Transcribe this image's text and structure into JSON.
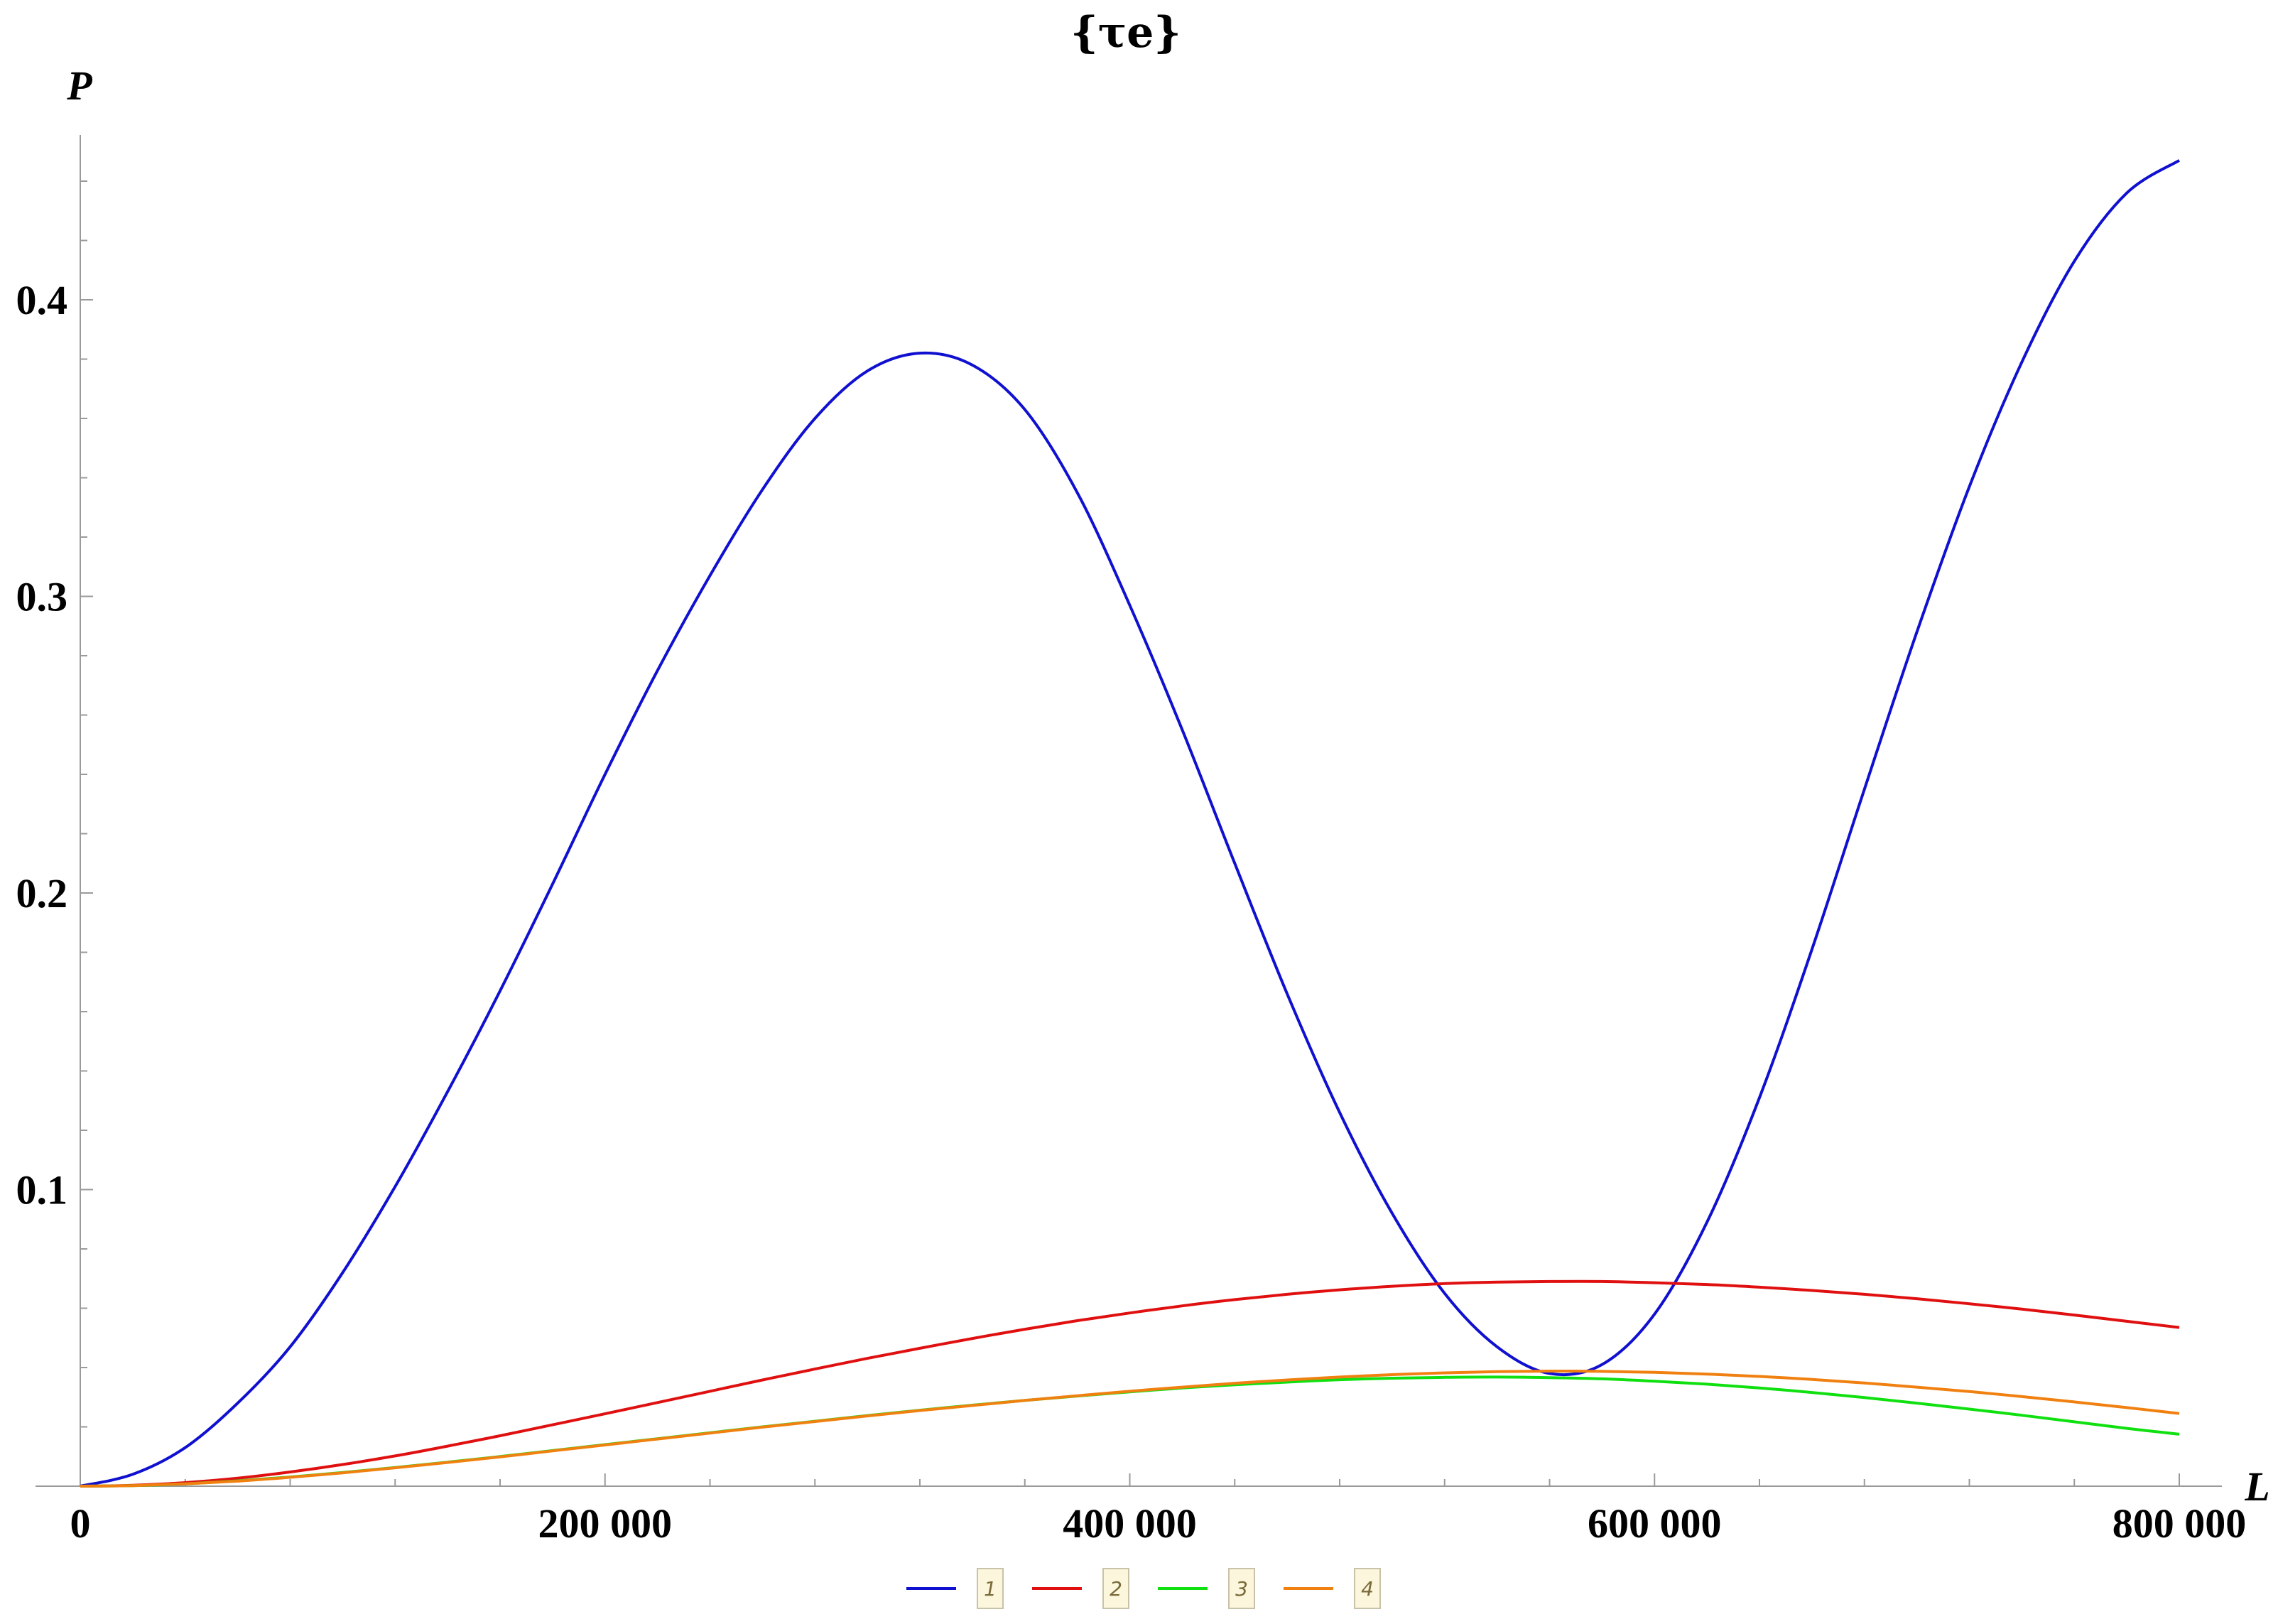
{
  "chart_data": {
    "type": "line",
    "title": "{τe}",
    "xlabel": "L",
    "ylabel": "P",
    "xlim": [
      0,
      800000
    ],
    "ylim": [
      0,
      0.45
    ],
    "x_ticks": [
      0,
      200000,
      400000,
      600000,
      800000
    ],
    "x_tick_labels": [
      "0",
      "200 000",
      "400 000",
      "600 000",
      "800 000"
    ],
    "y_ticks": [
      0.1,
      0.2,
      0.3,
      0.4
    ],
    "y_tick_labels": [
      "0.1",
      "0.2",
      "0.3",
      "0.4"
    ],
    "grid": false,
    "legend_position": "bottom-center",
    "x": [
      0,
      20000,
      40000,
      60000,
      80000,
      100000,
      120000,
      140000,
      160000,
      180000,
      200000,
      220000,
      240000,
      260000,
      280000,
      300000,
      320000,
      340000,
      360000,
      380000,
      400000,
      420000,
      440000,
      460000,
      480000,
      500000,
      520000,
      540000,
      560000,
      580000,
      600000,
      620000,
      640000,
      660000,
      680000,
      700000,
      720000,
      740000,
      760000,
      780000,
      800000
    ],
    "series": [
      {
        "name": "1",
        "color": "#1010d0",
        "values": [
          0,
          0.004,
          0.013,
          0.028,
          0.047,
          0.072,
          0.101,
          0.133,
          0.167,
          0.203,
          0.24,
          0.275,
          0.307,
          0.336,
          0.36,
          0.376,
          0.382,
          0.378,
          0.363,
          0.335,
          0.297,
          0.255,
          0.21,
          0.166,
          0.126,
          0.092,
          0.065,
          0.047,
          0.038,
          0.041,
          0.058,
          0.089,
          0.131,
          0.181,
          0.235,
          0.288,
          0.337,
          0.379,
          0.413,
          0.436,
          0.447
        ]
      },
      {
        "name": "2",
        "color": "#e01010",
        "values": [
          0,
          0.0003,
          0.0012,
          0.0027,
          0.0048,
          0.0073,
          0.0102,
          0.0135,
          0.017,
          0.0207,
          0.0244,
          0.0282,
          0.032,
          0.0358,
          0.0395,
          0.0431,
          0.0465,
          0.0498,
          0.0529,
          0.0558,
          0.0584,
          0.0608,
          0.0629,
          0.0647,
          0.0662,
          0.0674,
          0.0683,
          0.0688,
          0.069,
          0.069,
          0.0686,
          0.068,
          0.0671,
          0.066,
          0.0647,
          0.0632,
          0.0615,
          0.0597,
          0.0577,
          0.0556,
          0.0535
        ]
      },
      {
        "name": "3",
        "color": "#10e010",
        "values": [
          0,
          0.0002,
          0.0008,
          0.0018,
          0.0031,
          0.0046,
          0.0063,
          0.0081,
          0.01,
          0.012,
          0.014,
          0.016,
          0.018,
          0.02,
          0.0219,
          0.0238,
          0.0256,
          0.0273,
          0.0289,
          0.0304,
          0.0318,
          0.0331,
          0.0342,
          0.0351,
          0.0359,
          0.0364,
          0.0367,
          0.0368,
          0.0366,
          0.0362,
          0.0354,
          0.0344,
          0.0331,
          0.0316,
          0.0299,
          0.028,
          0.026,
          0.0239,
          0.0217,
          0.0195,
          0.0175
        ]
      },
      {
        "name": "4",
        "color": "#f08010",
        "values": [
          0,
          0.0002,
          0.0008,
          0.0017,
          0.003,
          0.0045,
          0.0062,
          0.008,
          0.0099,
          0.0119,
          0.0139,
          0.0159,
          0.0179,
          0.0199,
          0.0218,
          0.0237,
          0.0255,
          0.0272,
          0.0289,
          0.0305,
          0.032,
          0.0334,
          0.0347,
          0.0358,
          0.0368,
          0.0376,
          0.0382,
          0.0386,
          0.0388,
          0.0387,
          0.0384,
          0.0378,
          0.037,
          0.036,
          0.0348,
          0.0334,
          0.0319,
          0.0302,
          0.0284,
          0.0265,
          0.0245
        ]
      }
    ]
  }
}
